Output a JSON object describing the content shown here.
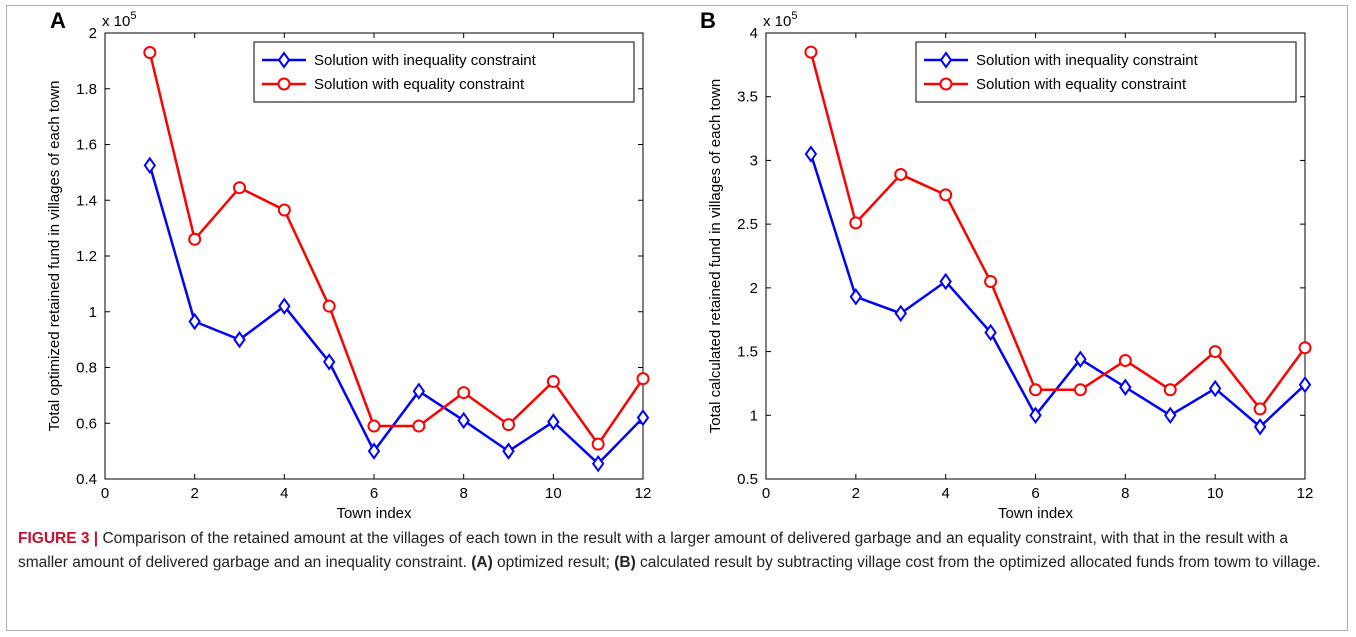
{
  "chart_data": [
    {
      "type": "line",
      "panel_label": "A",
      "exponent_label": "x 10",
      "exponent_power": "5",
      "xlabel": "Town index",
      "ylabel": "Total optimized retained fund in villages of each town",
      "xlim": [
        0,
        12
      ],
      "ylim": [
        0.4,
        2.0
      ],
      "xticks": [
        "0",
        "2",
        "4",
        "6",
        "8",
        "10",
        "12"
      ],
      "yticks": [
        "0.4",
        "0.6",
        "0.8",
        "1",
        "1.2",
        "1.4",
        "1.6",
        "1.8",
        "2"
      ],
      "legend_position": "top-right",
      "x": [
        1,
        2,
        3,
        4,
        5,
        6,
        7,
        8,
        9,
        10,
        11,
        12
      ],
      "series": [
        {
          "name": "Solution with inequality constraint",
          "color": "#0000ff",
          "marker": "diamond",
          "values": [
            1.525,
            0.965,
            0.9,
            1.02,
            0.82,
            0.5,
            0.715,
            0.61,
            0.5,
            0.605,
            0.455,
            0.62
          ]
        },
        {
          "name": "Solution with equality constraint",
          "color": "#ff0000",
          "marker": "circle",
          "values": [
            1.93,
            1.26,
            1.445,
            1.365,
            1.02,
            0.59,
            0.59,
            0.71,
            0.595,
            0.75,
            0.525,
            0.76
          ]
        }
      ]
    },
    {
      "type": "line",
      "panel_label": "B",
      "exponent_label": "x 10",
      "exponent_power": "5",
      "xlabel": "Town index",
      "ylabel": "Total calculated retained fund in villages of each town",
      "xlim": [
        0,
        12
      ],
      "ylim": [
        0.5,
        4.0
      ],
      "xticks": [
        "0",
        "2",
        "4",
        "6",
        "8",
        "10",
        "12"
      ],
      "yticks": [
        "0.5",
        "1",
        "1.5",
        "2",
        "2.5",
        "3",
        "3.5",
        "4"
      ],
      "legend_position": "top-right",
      "x": [
        1,
        2,
        3,
        4,
        5,
        6,
        7,
        8,
        9,
        10,
        11,
        12
      ],
      "series": [
        {
          "name": "Solution with inequality constraint",
          "color": "#0000ff",
          "marker": "diamond",
          "values": [
            3.05,
            1.93,
            1.8,
            2.05,
            1.65,
            1.0,
            1.44,
            1.22,
            1.0,
            1.21,
            0.91,
            1.24
          ]
        },
        {
          "name": "Solution with equality constraint",
          "color": "#ff0000",
          "marker": "circle",
          "values": [
            3.85,
            2.51,
            2.89,
            2.73,
            2.05,
            1.2,
            1.2,
            1.43,
            1.2,
            1.5,
            1.05,
            1.53
          ]
        }
      ]
    }
  ],
  "caption": {
    "label": "FIGURE 3 |",
    "text_1": " Comparison of the retained amount at the villages of each town in the result with a larger amount of delivered garbage and an equality constraint, with that in the result with a smaller amount of delivered garbage and an inequality constraint. ",
    "a_ref": "(A)",
    "text_2": " optimized result; ",
    "b_ref": "(B)",
    "text_3": " calculated result by subtracting village cost from the optimized allocated funds from towm to village."
  }
}
